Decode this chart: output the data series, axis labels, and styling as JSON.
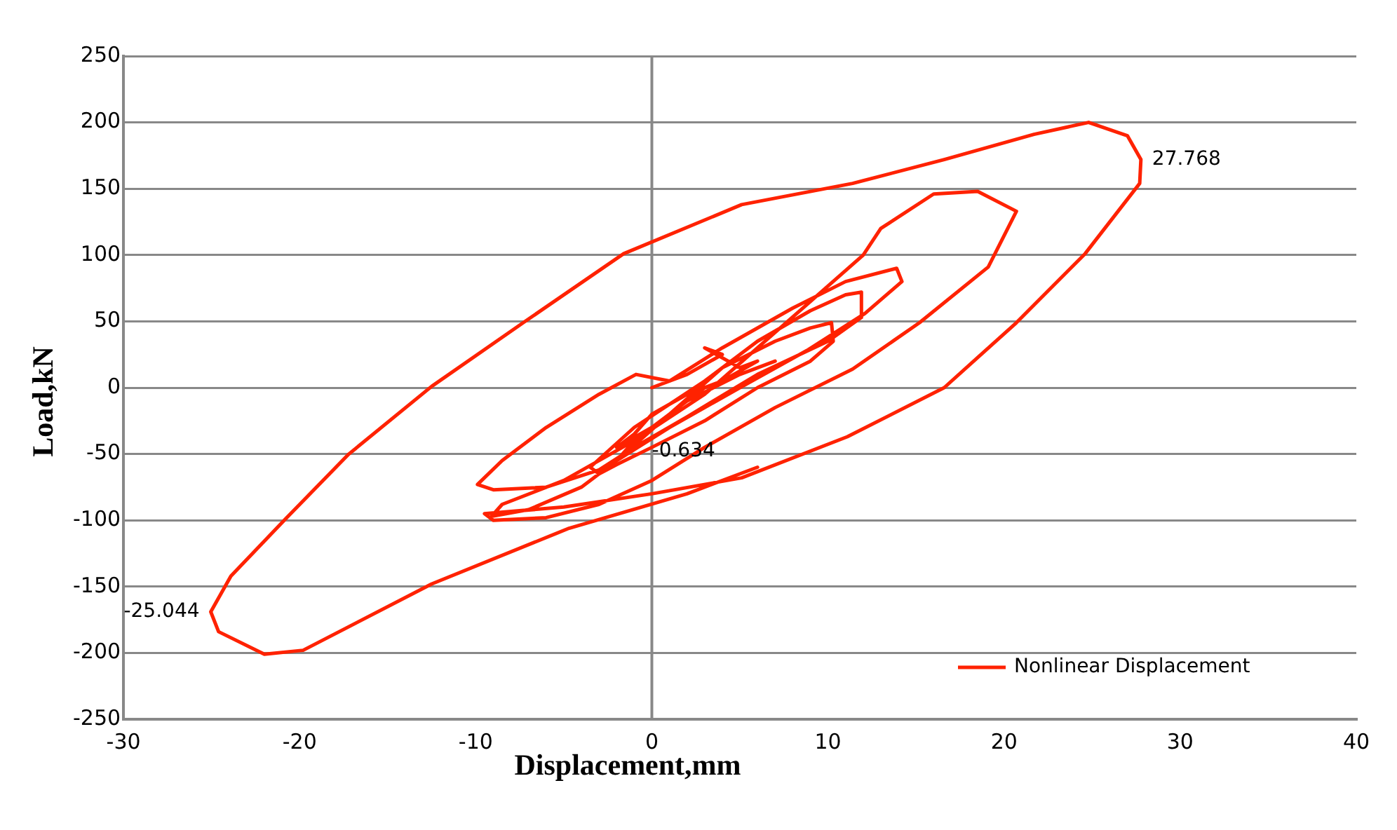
{
  "chart_data": {
    "type": "line",
    "xlabel": "Displacement,mm",
    "ylabel": "Load,kN",
    "xlim": [
      -30,
      40
    ],
    "xticks": [
      -30,
      -20,
      -10,
      0,
      10,
      20,
      30,
      40
    ],
    "ylim": [
      -250,
      250
    ],
    "yticks": [
      -250,
      -200,
      -150,
      -100,
      -50,
      0,
      50,
      100,
      150,
      200,
      250
    ],
    "grid": "y",
    "legend": "bottom right",
    "marker": "none",
    "line_style": "solid",
    "annotations": [
      {
        "text": "27.768",
        "x": 27.768,
        "y": 172
      },
      {
        "text": "-25.044",
        "x": -25.044,
        "y": -169
      },
      {
        "text": "-0.634",
        "x": -0.634,
        "y": -48
      }
    ],
    "series": [
      {
        "name": "Nonlinear Displacement",
        "color": "#ff2200",
        "x": [
          0,
          2,
          4,
          3,
          5,
          6,
          4,
          2,
          0,
          -1,
          -2,
          0,
          3,
          6,
          7,
          5,
          2,
          -1,
          -2,
          1,
          4,
          7,
          9,
          10.2,
          10.3,
          9,
          6,
          3,
          0,
          -2,
          -3,
          -3.5,
          -1,
          3,
          6,
          9,
          11,
          11.9,
          11.9,
          10,
          6,
          2,
          -1,
          -3,
          -6,
          -9,
          -9.9,
          -8.5,
          -6,
          -3,
          -0.9,
          1,
          4,
          8,
          11,
          13.9,
          14.2,
          12.1,
          8.8,
          5,
          1,
          -2,
          -4,
          -7,
          -9.1,
          -8.5,
          -5,
          -1,
          3,
          6,
          9,
          12,
          13,
          16,
          18.5,
          20.7,
          19.1,
          15.2,
          11.4,
          7,
          3,
          0,
          -3,
          -6,
          -9,
          -9.5,
          -5,
          0,
          5.1,
          11.1,
          16.6,
          20.7,
          24.6,
          27.7,
          27.768,
          27,
          24.8,
          21.7,
          16.6,
          11.4,
          5.1,
          -1.6,
          -7.3,
          -12.5,
          -17.2,
          -20.8,
          -23.9,
          -25.044,
          -24.6,
          -22,
          -19.8,
          -12.5,
          -4.7,
          2,
          6
        ],
        "values": [
          0,
          10,
          25,
          30,
          15,
          20,
          5,
          -5,
          -20,
          -35,
          -45,
          -30,
          0,
          15,
          20,
          10,
          -10,
          -40,
          -55,
          -20,
          15,
          35,
          45,
          49,
          35,
          20,
          0,
          -25,
          -45,
          -58,
          -65,
          -60,
          -30,
          5,
          35,
          58,
          70,
          72,
          53,
          35,
          10,
          -22,
          -45,
          -62,
          -75,
          -77,
          -73,
          -55,
          -30,
          -5,
          10,
          5,
          30,
          60,
          80,
          90,
          80,
          56,
          28,
          0,
          -30,
          -55,
          -75,
          -92,
          -97,
          -88,
          -70,
          -40,
          -5,
          30,
          65,
          100,
          120,
          146,
          148,
          133,
          91,
          49,
          14,
          -15,
          -45,
          -70,
          -88,
          -98,
          -100,
          -95,
          -90,
          -80,
          -68,
          -37,
          0,
          49,
          101,
          154,
          172,
          190,
          200,
          191,
          172,
          154,
          138,
          101,
          49,
          1,
          -50,
          -99,
          -142,
          -169,
          -184,
          -201,
          -198,
          -148,
          -106,
          -80,
          -60
        ]
      }
    ]
  }
}
